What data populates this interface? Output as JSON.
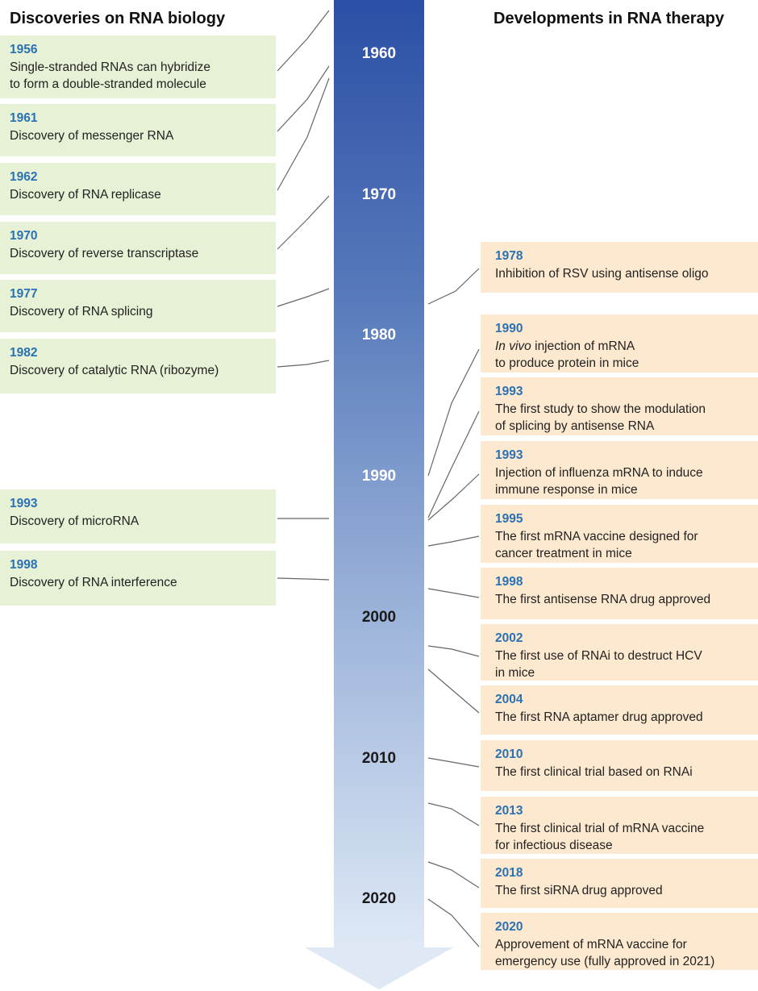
{
  "headings": {
    "left": "Discoveries on RNA biology",
    "right": "Developments in RNA therapy"
  },
  "timeline": {
    "decades": [
      "1960",
      "1970",
      "1980",
      "1990",
      "2000",
      "2010",
      "2020"
    ],
    "colors": {
      "top": "#2b4fa5",
      "bottom": "#dfe9f6",
      "light_label": "#ffffff",
      "dark_label": "#1a1a1a"
    }
  },
  "biology_discoveries": [
    {
      "year": "1956",
      "text": "Single-stranded RNAs can hybridize\nto form a double-stranded molecule"
    },
    {
      "year": "1961",
      "text": "Discovery of messenger RNA"
    },
    {
      "year": "1962",
      "text": "Discovery of RNA replicase"
    },
    {
      "year": "1970",
      "text": "Discovery of reverse transcriptase"
    },
    {
      "year": "1977",
      "text": "Discovery of RNA splicing"
    },
    {
      "year": "1982",
      "text": "Discovery of catalytic RNA (ribozyme)"
    },
    {
      "year": "1993",
      "text": "Discovery of microRNA"
    },
    {
      "year": "1998",
      "text": "Discovery of RNA interference"
    }
  ],
  "therapy_developments": [
    {
      "year": "1978",
      "text": "Inhibition of RSV using antisense oligo"
    },
    {
      "year": "1990",
      "text_italic": "In vivo",
      "text": " injection of mRNA\nto produce protein in mice"
    },
    {
      "year": "1993",
      "text": "The first study to show the modulation\nof splicing by antisense RNA"
    },
    {
      "year": "1993",
      "text": "Injection of influenza mRNA to induce\nimmune response in mice"
    },
    {
      "year": "1995",
      "text": "The first mRNA vaccine designed for\ncancer treatment in mice"
    },
    {
      "year": "1998",
      "text": "The first antisense RNA drug approved"
    },
    {
      "year": "2002",
      "text": "The first use of RNAi to destruct HCV\nin mice"
    },
    {
      "year": "2004",
      "text": "The first RNA aptamer drug approved"
    },
    {
      "year": "2010",
      "text": "The first clinical trial based on RNAi"
    },
    {
      "year": "2013",
      "text": "The first clinical trial of mRNA vaccine\nfor infectious disease"
    },
    {
      "year": "2018",
      "text": "The first siRNA drug approved"
    },
    {
      "year": "2020",
      "text": "Approvement of mRNA vaccine for\nemergency use (fully approved in 2021)"
    }
  ],
  "colors": {
    "biology_box": "#e6f1d6",
    "therapy_box": "#fde9cf",
    "year_text": "#2a72b3",
    "connector": "#555555"
  }
}
